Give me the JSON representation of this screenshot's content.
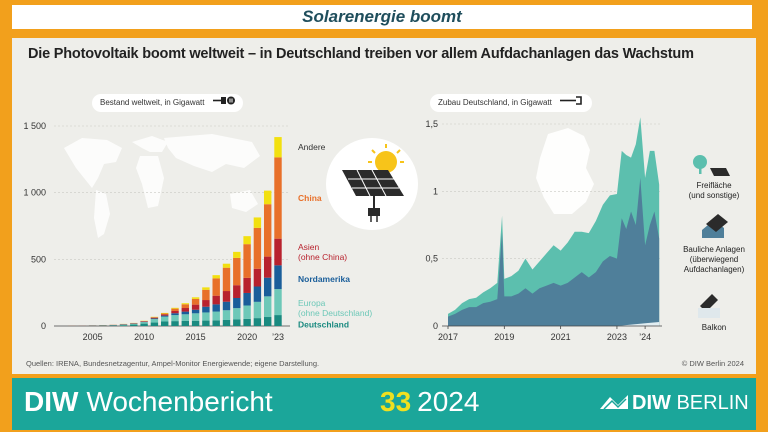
{
  "banner": {
    "title": "Solarenergie boomt"
  },
  "headline": "Die Photovoltaik boomt weltweit – in Deutschland treiben vor allem Aufdachanlagen das Wachstum",
  "chart_data": [
    {
      "type": "bar",
      "stacked": true,
      "subtitle": "Bestand weltweit, in Gigawatt",
      "x": [
        2003,
        2004,
        2005,
        2006,
        2007,
        2008,
        2009,
        2010,
        2011,
        2012,
        2013,
        2014,
        2015,
        2016,
        2017,
        2018,
        2019,
        2020,
        2021,
        2022,
        2023
      ],
      "xticks": [
        "2005",
        "2010",
        "2015",
        "2020",
        "’23"
      ],
      "xtick_values": [
        2005,
        2010,
        2015,
        2020,
        2023
      ],
      "yticks": [
        "0",
        "500",
        "1 000",
        "1 500"
      ],
      "ytick_values": [
        0,
        500,
        1000,
        1500
      ],
      "ylim": [
        0,
        1500
      ],
      "series": [
        {
          "name": "Deutschland",
          "color": "#1a8a80",
          "values": [
            0.4,
            1.1,
            2.1,
            2.9,
            4.2,
            6.1,
            10.6,
            18,
            25.9,
            34,
            36.7,
            37.9,
            39.2,
            40.7,
            42.3,
            45.2,
            49,
            53.8,
            59.2,
            67.4,
            82
          ]
        },
        {
          "name": "Europa (ohne Deutschland)",
          "color": "#6dc8b8",
          "values": [
            0.3,
            0.4,
            0.5,
            0.7,
            1.3,
            5,
            6,
            11,
            26,
            36,
            45,
            50,
            56,
            61,
            66,
            73,
            85,
            100,
            122,
            155,
            195
          ]
        },
        {
          "name": "Nordamerika",
          "color": "#1a5e9a",
          "values": [
            0.3,
            0.4,
            0.5,
            0.7,
            0.9,
            1.2,
            1.8,
            3,
            5,
            8,
            14,
            20,
            27,
            43,
            54,
            64,
            76,
            94,
            115,
            140,
            178
          ]
        },
        {
          "name": "Asien (ohne China)",
          "color": "#b8222e",
          "values": [
            0.9,
            1.2,
            1.5,
            1.8,
            2.1,
            2.5,
            3,
            4.2,
            6,
            9,
            17,
            27,
            38,
            50,
            65,
            80,
            96,
            113,
            133,
            158,
            200
          ]
        },
        {
          "name": "China",
          "color": "#e8702a",
          "values": [
            0.05,
            0.06,
            0.07,
            0.08,
            0.1,
            0.14,
            0.3,
            1,
            3,
            6.7,
            17.7,
            28,
            43,
            77,
            130,
            175,
            205,
            253,
            307,
            393,
            610
          ]
        },
        {
          "name": "Andere",
          "color": "#f2e010",
          "values": [
            0.2,
            0.2,
            0.3,
            0.4,
            0.5,
            0.8,
            1.5,
            2,
            3,
            4.5,
            6,
            8,
            12,
            18,
            24,
            30,
            45,
            60,
            78,
            102,
            152
          ]
        }
      ]
    },
    {
      "type": "area",
      "subtitle": "Zubau Deutschland, in Gigawatt",
      "xticks": [
        "2017",
        "2019",
        "2021",
        "2023",
        "’24"
      ],
      "xtick_values": [
        2017,
        2019,
        2021,
        2023,
        2024
      ],
      "yticks": [
        "0",
        "0,5",
        "1",
        "1,5"
      ],
      "ytick_values": [
        0,
        0.5,
        1,
        1.5
      ],
      "ylim": [
        0,
        1.5
      ],
      "xlim": [
        2017,
        2024.6
      ],
      "series": [
        {
          "name": "Bauliche Anlagen (überwiegend Aufdachanlagen)",
          "label_lines": [
            "Bauliche Anlagen",
            "(überwiegend",
            "Aufdachanlagen)"
          ],
          "color": "#4f7f9a",
          "x": [
            2017,
            2017.25,
            2017.5,
            2017.75,
            2018,
            2018.25,
            2018.5,
            2018.75,
            2018.92,
            2019,
            2019.25,
            2019.5,
            2019.75,
            2020,
            2020.25,
            2020.5,
            2020.75,
            2021,
            2021.25,
            2021.5,
            2021.75,
            2022,
            2022.25,
            2022.5,
            2022.75,
            2023,
            2023.17,
            2023.33,
            2023.5,
            2023.67,
            2023.83,
            2024,
            2024.17,
            2024.33,
            2024.5
          ],
          "y": [
            0.07,
            0.09,
            0.12,
            0.14,
            0.14,
            0.17,
            0.18,
            0.2,
            0.7,
            0.22,
            0.22,
            0.24,
            0.28,
            0.24,
            0.28,
            0.3,
            0.32,
            0.3,
            0.32,
            0.36,
            0.4,
            0.36,
            0.4,
            0.48,
            0.52,
            0.5,
            0.8,
            0.72,
            0.85,
            0.75,
            1.1,
            0.6,
            0.75,
            0.85,
            0.65
          ]
        },
        {
          "name": "Freifläche (und sonstige)",
          "label_lines": [
            "Freifläche",
            "(und sonstige)"
          ],
          "color": "#5cbfae",
          "x": [
            2017,
            2017.25,
            2017.5,
            2017.75,
            2018,
            2018.25,
            2018.5,
            2018.75,
            2018.92,
            2019,
            2019.25,
            2019.5,
            2019.75,
            2020,
            2020.25,
            2020.5,
            2020.75,
            2021,
            2021.25,
            2021.5,
            2021.75,
            2022,
            2022.25,
            2022.5,
            2022.75,
            2023,
            2023.17,
            2023.33,
            2023.5,
            2023.67,
            2023.83,
            2024,
            2024.17,
            2024.33,
            2024.5
          ],
          "y": [
            0.02,
            0.03,
            0.05,
            0.06,
            0.07,
            0.08,
            0.1,
            0.12,
            0.12,
            0.13,
            0.15,
            0.17,
            0.22,
            0.18,
            0.2,
            0.24,
            0.28,
            0.26,
            0.3,
            0.34,
            0.3,
            0.33,
            0.38,
            0.42,
            0.45,
            0.48,
            0.5,
            0.55,
            0.4,
            0.6,
            0.45,
            0.5,
            0.55,
            0.45,
            0.4
          ]
        },
        {
          "name": "Balkon",
          "label_lines": [
            "Balkon"
          ],
          "color": "#e2eef2",
          "x": [
            2017,
            2023,
            2023.5,
            2024,
            2024.5
          ],
          "y": [
            0,
            0,
            0.01,
            0.02,
            0.03
          ]
        }
      ]
    }
  ],
  "source": "Quellen: IRENA, Bundesnetzagentur, Ampel-Monitor Energiewende; eigene Darstellung.",
  "copyright": "© DIW Berlin 2024",
  "footer": {
    "brand_bold": "DIW",
    "brand_rest": "Wochenbericht",
    "issue_number": "33",
    "issue_year": "2024",
    "logo_a": "DIW",
    "logo_b": "BERLIN"
  },
  "icons": [
    "plug-icon",
    "solar-panel-icon",
    "sun-icon",
    "tree-icon",
    "roof-panel-icon",
    "balcony-icon",
    "diw-wave-icon"
  ]
}
